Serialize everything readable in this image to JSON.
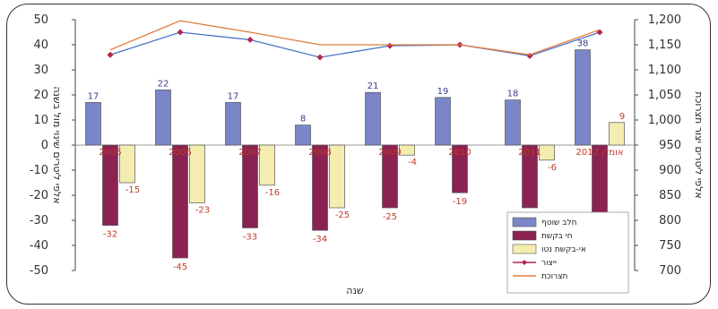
{
  "chart_data": {
    "type": "bar",
    "categories": [
      "2005",
      "2006",
      "2007",
      "2008",
      "2009",
      "2010",
      "2011",
      "2012"
    ],
    "category_labels": [
      "2005",
      "2006",
      "2007",
      "2008",
      "2009",
      "2010",
      "2011",
      "2012 אומדן"
    ],
    "series": [
      {
        "name": "חלב שוטף",
        "color": "#7b86c8",
        "values": [
          17,
          22,
          17,
          8,
          21,
          19,
          18,
          38
        ]
      },
      {
        "name": "חי בקשת",
        "color": "#8b2252",
        "values": [
          -32,
          -45,
          -33,
          -34,
          -25,
          -19,
          -25,
          -29
        ]
      },
      {
        "name": "אי-בקשת נטו",
        "color": "#f5edb0",
        "values": [
          -15,
          -23,
          -16,
          -25,
          -4,
          0,
          -6,
          9
        ]
      }
    ],
    "bar_labels": {
      "first": [
        "17",
        "22",
        "17",
        "8",
        "21",
        "19",
        "18",
        "38"
      ],
      "second": [
        "-32",
        "-45",
        "-33",
        "-34",
        "-25",
        "-19",
        "-25",
        "-29"
      ],
      "third": [
        "-15",
        "-23",
        "-16",
        "-25",
        "-4",
        "",
        "-6",
        "9"
      ]
    },
    "lines": [
      {
        "name": "ייצור",
        "color": "#b5254a",
        "axis": "right",
        "marker": "diamond",
        "values": [
          1130,
          1175,
          1160,
          1125,
          1148,
          1150,
          1128,
          1175
        ]
      },
      {
        "name": "תצרוכת",
        "color": "#e07a3a",
        "axis": "right",
        "marker": "none",
        "values": [
          1140,
          1198,
          1175,
          1150,
          1150,
          1150,
          1130,
          1180
        ]
      }
    ],
    "left_axis": {
      "min": -50,
      "max": 50,
      "ticks": [
        "50",
        "40",
        "30",
        "20",
        "10",
        "0",
        "-10",
        "-20",
        "-30",
        "-40",
        "-50"
      ],
      "label": "אלפי ליטרים שינוי מול בשנה"
    },
    "right_axis": {
      "min": 700,
      "max": 1200,
      "ticks": [
        "1,200",
        "1,150",
        "1,100",
        "1,050",
        "1,000",
        "950",
        "900",
        "850",
        "800",
        "750",
        "700"
      ],
      "label": "אלפי ליטרים יצור תצרוכת"
    },
    "xlabel": "שנה",
    "legend": {
      "placement": "bottom-right",
      "items": [
        "חלב שוטף",
        "חי בקשת",
        "אי-בקשת נטו",
        "ייצור",
        "תצרוכת"
      ]
    }
  }
}
